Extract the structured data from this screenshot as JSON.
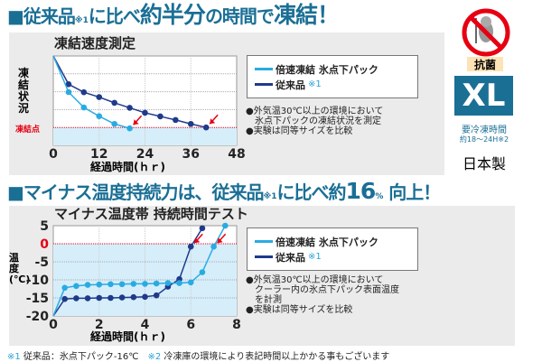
{
  "headline1": {
    "a": "■従来品",
    "ref": "※1",
    "b": "に比べ",
    "c": "約半分",
    "d": "の時間で",
    "e": "凍結！"
  },
  "headline2": {
    "a": "■マイナス温度持続力は、従来品",
    "ref": "※1",
    "b": "に比べ約",
    "c": "16",
    "d": "%",
    "e": " 向上！"
  },
  "colors": {
    "fast": "#29abe2",
    "conventional": "#1f3a8a",
    "accent": "#e60012",
    "heading": "#1a6f95",
    "fill": "#d6eefa"
  },
  "chart_data": [
    {
      "type": "line",
      "title": "凍結速度測定",
      "xlabel": "経過時間(ｈｒ)",
      "ylabel": "凍結状況",
      "xlim": [
        0,
        48
      ],
      "ylim": [
        0,
        5
      ],
      "xticks": [
        "0",
        "12",
        "24",
        "36",
        "48"
      ],
      "freeze_label": "凍結点",
      "freeze_level": 1,
      "grid": true,
      "legend": "right",
      "series": [
        {
          "name": "倍速凍結 氷点下パック",
          "color": "#29abe2",
          "x": [
            0,
            4,
            8,
            12,
            16,
            20
          ],
          "y": [
            5,
            2.98,
            2.12,
            1.63,
            1.2,
            0.95
          ]
        },
        {
          "name": "従来品",
          "ref": "※1",
          "color": "#1f3a8a",
          "x": [
            0,
            4,
            8,
            12,
            16,
            20,
            24,
            28,
            32,
            36,
            40
          ],
          "y": [
            5,
            3.42,
            2.97,
            2.7,
            2.38,
            2.1,
            1.82,
            1.62,
            1.42,
            1.2,
            1.0
          ]
        }
      ],
      "arrows_at": [
        [
          20,
          0.95
        ],
        [
          40,
          1.0
        ]
      ]
    },
    {
      "type": "line",
      "title": "マイナス温度帯 持続時間テスト",
      "xlabel": "経過時間(ｈｒ)",
      "ylabel": "温度(℃)",
      "xlim": [
        0,
        8
      ],
      "ylim": [
        -20,
        5
      ],
      "xticks": [
        "0",
        "2",
        "4",
        "6",
        "8"
      ],
      "yticks": [
        "5",
        "0",
        "-5",
        "-10",
        "-15",
        "-20"
      ],
      "grid": true,
      "legend": "right",
      "series": [
        {
          "name": "倍速凍結 氷点下パック",
          "color": "#29abe2",
          "x": [
            0,
            0.5,
            1,
            1.5,
            2,
            2.5,
            3,
            3.5,
            4,
            4.5,
            5,
            5.5,
            6,
            6.5,
            7,
            7.5
          ],
          "y": [
            -20,
            -12.2,
            -11.7,
            -11.4,
            -11.3,
            -11.2,
            -11.2,
            -11.1,
            -11.1,
            -11,
            -10.9,
            -10.9,
            -10.7,
            -7.9,
            -0.8,
            5
          ]
        },
        {
          "name": "従来品",
          "ref": "※1",
          "color": "#1f3a8a",
          "x": [
            0,
            0.5,
            1,
            1.5,
            2,
            2.5,
            3,
            3.5,
            4,
            4.5,
            5,
            5.5,
            6,
            6.5
          ],
          "y": [
            -20,
            -15.3,
            -15.1,
            -15.1,
            -15,
            -15,
            -14.9,
            -14.8,
            -14.7,
            -14.3,
            -11.9,
            -9.8,
            -0.8,
            4.3
          ]
        }
      ],
      "arrows_at": [
        [
          6,
          -0.8
        ],
        [
          7,
          -0.8
        ]
      ]
    }
  ],
  "notes1": [
    "●外気温30℃以上の環境において",
    "　氷点下パックの凍結状況を測定",
    "●実験は同等サイズを比較"
  ],
  "notes2": [
    "●外気温30℃以上の環境において",
    "　クーラー内の氷点下パック表面温度",
    "　を計測",
    "●実験は同等サイズを比較"
  ],
  "side": {
    "badge": "抗菌",
    "size": "XL",
    "freeze_time_label": "要冷凍時間",
    "freeze_time": "約18〜24H",
    "freeze_ref": "※2",
    "origin": "日本製",
    "icon": "antibacterial-no-germ-icon"
  },
  "footnote": {
    "r1": "※1",
    "t1": " 従来品：氷点下パック-16℃　",
    "r2": "※2",
    "t2": " 冷凍庫の環境により表記時間以上かかる事もございます"
  }
}
